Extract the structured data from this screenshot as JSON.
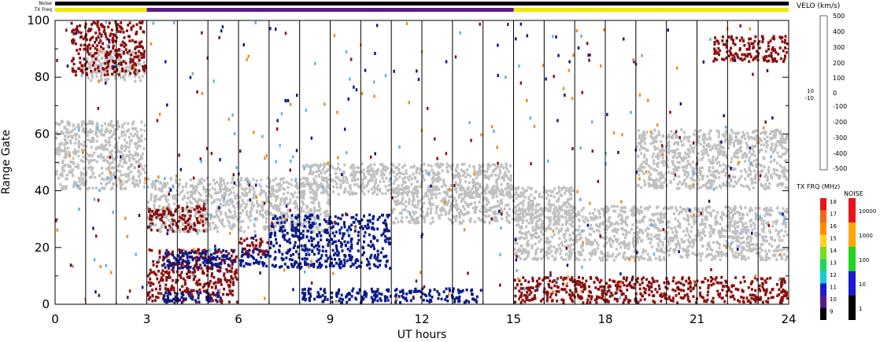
{
  "status_bars": {
    "noise_label": "Noise",
    "txfreq_label": "TX Freq",
    "segments": [
      {
        "start": 0,
        "end": 3,
        "color": "#f0e800"
      },
      {
        "start": 3,
        "end": 15,
        "color": "#5a1a8c"
      },
      {
        "start": 15,
        "end": 24,
        "color": "#f0e800"
      }
    ]
  },
  "colors": {
    "ground_scatter": "#c0c0c0",
    "negative_velocity": "#8b0f0f",
    "positive_velocity": "#0a1a8a"
  },
  "chart_data": {
    "type": "heatmap",
    "title": "",
    "xlabel": "UT hours",
    "ylabel": "Range Gate",
    "xlim": [
      0,
      24
    ],
    "ylim": [
      0,
      100
    ],
    "xticks": [
      "0",
      "3",
      "6",
      "9",
      "12",
      "15",
      "18",
      "21",
      "24"
    ],
    "yticks": [
      "0",
      "20",
      "40",
      "60",
      "80",
      "100"
    ],
    "grid_x_hours": [
      1,
      2,
      3,
      4,
      5,
      6,
      7,
      8,
      9,
      10,
      11,
      12,
      13,
      14,
      15,
      16,
      17,
      18,
      19,
      20,
      21,
      22,
      23
    ],
    "regions": [
      {
        "kind": "ground",
        "x0": 0,
        "x1": 3,
        "y0": 40,
        "y1": 65
      },
      {
        "kind": "ground",
        "x0": 3,
        "x1": 9,
        "y0": 25,
        "y1": 45
      },
      {
        "kind": "ground",
        "x0": 8,
        "x1": 15,
        "y0": 38,
        "y1": 50
      },
      {
        "kind": "ground",
        "x0": 11,
        "x1": 17,
        "y0": 28,
        "y1": 42
      },
      {
        "kind": "ground",
        "x0": 15,
        "x1": 24,
        "y0": 15,
        "y1": 35
      },
      {
        "kind": "ground",
        "x0": 19,
        "x1": 24,
        "y0": 40,
        "y1": 62
      },
      {
        "kind": "ground",
        "x0": 1,
        "x1": 3,
        "y0": 78,
        "y1": 90
      },
      {
        "kind": "negative",
        "x0": 3,
        "x1": 5,
        "y0": 25,
        "y1": 35
      },
      {
        "kind": "negative",
        "x0": 3,
        "x1": 6,
        "y0": 0,
        "y1": 20
      },
      {
        "kind": "negative",
        "x0": 6,
        "x1": 7,
        "y0": 17,
        "y1": 24
      },
      {
        "kind": "negative",
        "x0": 15,
        "x1": 24,
        "y0": 0,
        "y1": 10
      },
      {
        "kind": "negative",
        "x0": 21.5,
        "x1": 24,
        "y0": 85,
        "y1": 95
      },
      {
        "kind": "negative",
        "x0": 0.5,
        "x1": 3,
        "y0": 80,
        "y1": 100
      },
      {
        "kind": "positive",
        "x0": 3.5,
        "x1": 5.5,
        "y0": 0,
        "y1": 5
      },
      {
        "kind": "positive",
        "x0": 3.5,
        "x1": 7,
        "y0": 12,
        "y1": 20
      },
      {
        "kind": "positive",
        "x0": 7,
        "x1": 11,
        "y0": 12,
        "y1": 32
      },
      {
        "kind": "positive",
        "x0": 8,
        "x1": 14,
        "y0": 0,
        "y1": 6
      }
    ]
  },
  "velocity_scale": {
    "title": "VELO (km/s)",
    "colors": [
      "#bfe4ff",
      "#92cff5",
      "#5db3ea",
      "#2f86d3",
      "#1451ad",
      "#0a1a8a",
      "#ffffff",
      "#8b0f0f",
      "#b32a12",
      "#d7590f",
      "#ee8c1f",
      "#f7b65b",
      "#fad9a8"
    ],
    "labels_upper": [
      "500",
      "400",
      "300",
      "200",
      "100",
      "0"
    ],
    "labels_lower": [
      "-100",
      "-200",
      "-300",
      "-400",
      "-500"
    ],
    "side_top": "10",
    "side_bottom": "-10"
  },
  "txfreq_scale": {
    "title": "TX FRQ (MHz)",
    "labels": [
      "18",
      "17",
      "16",
      "15",
      "14",
      "13",
      "12",
      "11",
      "10",
      "9"
    ],
    "colors": [
      "#e8141c",
      "#f06a15",
      "#ff8c00",
      "#ffd21e",
      "#7ddc1f",
      "#19d75a",
      "#19c8d7",
      "#1a1acf",
      "#5a1a8c",
      "#000000"
    ]
  },
  "noise_scale": {
    "title": "NOISE",
    "labels": [
      "10000",
      "1000",
      "100",
      "10",
      "1"
    ],
    "colors": [
      "#e8141c",
      "#ffa500",
      "#1fd61f",
      "#1a1acf",
      "#000000"
    ]
  }
}
